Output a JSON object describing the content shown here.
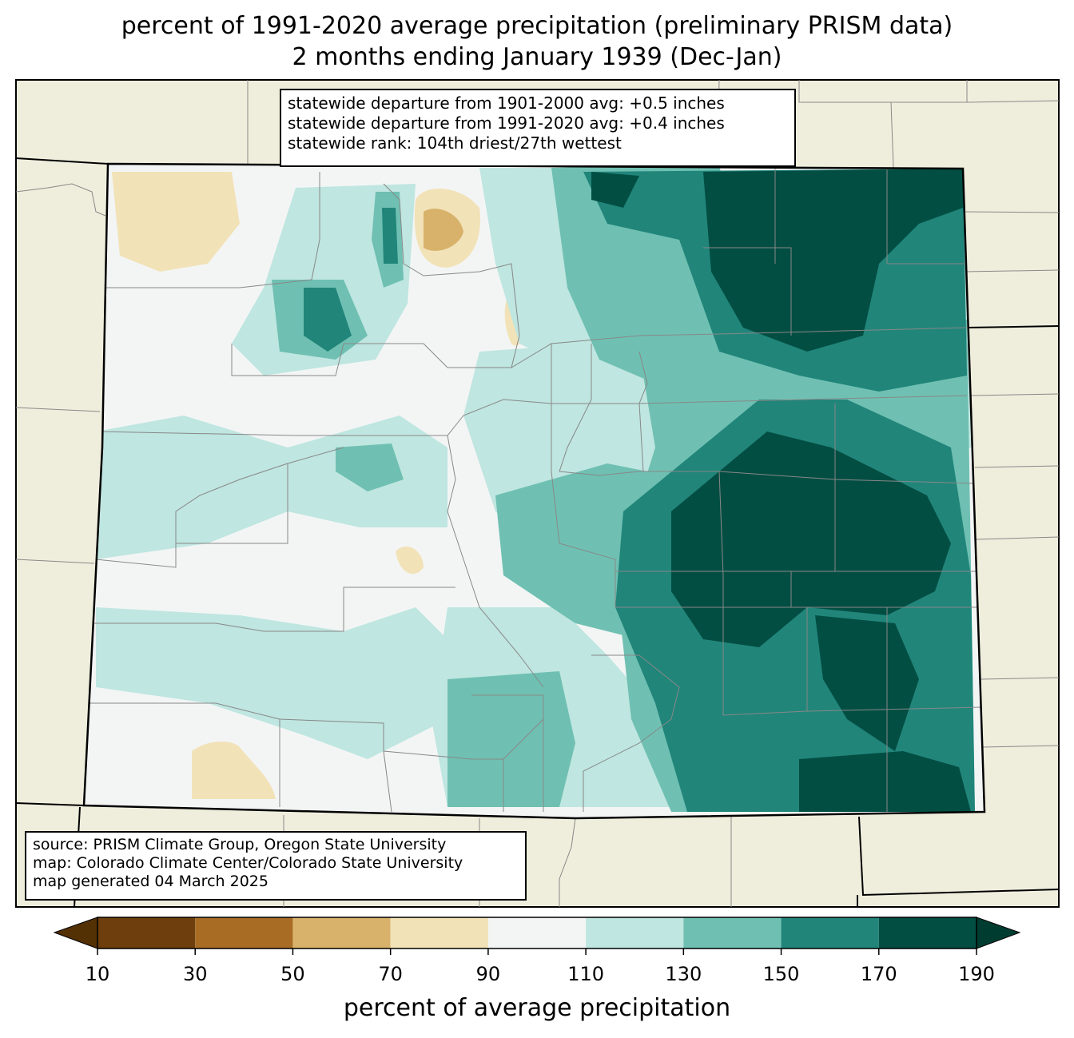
{
  "title": {
    "line1": "percent of 1991-2020 average precipitation (preliminary PRISM data)",
    "line2": "2 months ending January 1939 (Dec-Jan)"
  },
  "stats": {
    "line1": "statewide departure from 1901-2000 avg: +0.5 inches",
    "line2": "statewide departure from 1991-2020 avg: +0.4 inches",
    "line3": "statewide rank: 104th driest/27th wettest"
  },
  "source": {
    "line1": "source: PRISM Climate Group, Oregon State University",
    "line2": "map: Colorado Climate Center/Colorado State University",
    "line3": "map generated 04 March 2025"
  },
  "colorbar": {
    "label": "percent of average precipitation",
    "ticks": [
      "10",
      "30",
      "50",
      "70",
      "90",
      "110",
      "130",
      "150",
      "170",
      "190"
    ],
    "colors": [
      "#6e3f0c",
      "#a86c25",
      "#d8b26b",
      "#f2e2b7",
      "#f3f5f5",
      "#bfe6e0",
      "#6fc0b2",
      "#21857a",
      "#034e43"
    ],
    "under_color": "#543005",
    "over_color": "#003c30"
  },
  "map": {
    "background_color": "#efeedd",
    "state_fill": "#f3f5f5"
  }
}
